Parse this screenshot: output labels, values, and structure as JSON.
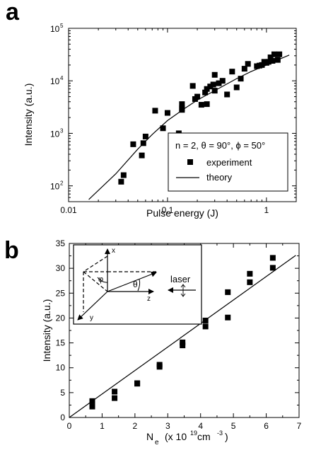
{
  "chart_data": [
    {
      "panel_label": "a",
      "type": "scatter",
      "xscale": "log",
      "yscale": "log",
      "xlim": [
        0.01,
        2
      ],
      "ylim": [
        50,
        100000
      ],
      "xlabel": "Pulse energy (J)",
      "ylabel": "Intensity (a.u.)",
      "x_ticks": [
        {
          "value": 0.01,
          "label": "0.01"
        },
        {
          "value": 0.1,
          "label": "0.1"
        },
        {
          "value": 1,
          "label": "1"
        }
      ],
      "y_ticks": [
        {
          "value": 100,
          "label": "10",
          "sup": "2"
        },
        {
          "value": 1000,
          "label": "10",
          "sup": "3"
        },
        {
          "value": 10000,
          "label": "10",
          "sup": "4"
        },
        {
          "value": 100000,
          "label": "10",
          "sup": "5"
        }
      ],
      "legend": {
        "placement": "lower-right",
        "title": "n = 2, θ = 90°, ϕ = 50°",
        "entries": [
          "experiment",
          "theory"
        ]
      },
      "series": [
        {
          "name": "experiment",
          "kind": "scatter",
          "marker": "square",
          "points": [
            [
              0.034,
              120
            ],
            [
              0.036,
              160
            ],
            [
              0.045,
              620
            ],
            [
              0.055,
              380
            ],
            [
              0.057,
              650
            ],
            [
              0.06,
              870
            ],
            [
              0.075,
              2700
            ],
            [
              0.09,
              1250
            ],
            [
              0.1,
              2450
            ],
            [
              0.13,
              1000
            ],
            [
              0.14,
              2800
            ],
            [
              0.14,
              3600
            ],
            [
              0.14,
              3000
            ],
            [
              0.18,
              8000
            ],
            [
              0.19,
              4500
            ],
            [
              0.2,
              5000
            ],
            [
              0.22,
              3500
            ],
            [
              0.24,
              6000
            ],
            [
              0.25,
              3600
            ],
            [
              0.25,
              7000
            ],
            [
              0.27,
              7800
            ],
            [
              0.29,
              8500
            ],
            [
              0.3,
              13000
            ],
            [
              0.3,
              6500
            ],
            [
              0.33,
              9000
            ],
            [
              0.36,
              10000
            ],
            [
              0.4,
              5500
            ],
            [
              0.45,
              15000
            ],
            [
              0.5,
              7500
            ],
            [
              0.55,
              11000
            ],
            [
              0.6,
              17000
            ],
            [
              0.65,
              21000
            ],
            [
              0.8,
              19000
            ],
            [
              0.85,
              19500
            ],
            [
              0.9,
              20000
            ],
            [
              0.95,
              23000
            ],
            [
              1.0,
              22000
            ],
            [
              1.05,
              23000
            ],
            [
              1.1,
              28000
            ],
            [
              1.15,
              24000
            ],
            [
              1.2,
              32000
            ],
            [
              1.3,
              25000
            ],
            [
              1.35,
              32000
            ]
          ]
        },
        {
          "name": "theory",
          "kind": "line",
          "points": [
            [
              0.016,
              55
            ],
            [
              0.03,
              170
            ],
            [
              0.05,
              500
            ],
            [
              0.07,
              950
            ],
            [
              0.1,
              1750
            ],
            [
              0.15,
              3000
            ],
            [
              0.2,
              4300
            ],
            [
              0.3,
              6500
            ],
            [
              0.5,
              11000
            ],
            [
              0.7,
              15000
            ],
            [
              1.0,
              20000
            ],
            [
              1.3,
              25000
            ],
            [
              1.7,
              31000
            ]
          ]
        }
      ]
    },
    {
      "panel_label": "b",
      "type": "scatter",
      "xlim": [
        0,
        7
      ],
      "ylim": [
        0,
        35
      ],
      "xlabel": "N",
      "xlabel_sub": "e",
      "xlabel_units": "(x 10",
      "xlabel_units_sup": "19",
      "xlabel_units_tail": " cm",
      "xlabel_units_sup2": "-3",
      "xlabel_units_close": ")",
      "ylabel": "Intensity (a.u.)",
      "x_ticks": [
        "0",
        "1",
        "2",
        "3",
        "4",
        "5",
        "6",
        "7"
      ],
      "y_ticks": [
        "0",
        "5",
        "10",
        "15",
        "20",
        "25",
        "30",
        "35"
      ],
      "series": [
        {
          "name": "experiment",
          "kind": "scatter",
          "marker": "square",
          "points": [
            [
              0.7,
              3.3
            ],
            [
              0.7,
              2.2
            ],
            [
              1.38,
              5.2
            ],
            [
              1.38,
              3.9
            ],
            [
              2.07,
              6.9
            ],
            [
              2.07,
              6.8
            ],
            [
              2.75,
              10.2
            ],
            [
              2.75,
              10.6
            ],
            [
              3.45,
              15.1
            ],
            [
              3.45,
              14.5
            ],
            [
              4.15,
              19.5
            ],
            [
              4.15,
              18.3
            ],
            [
              4.83,
              25.2
            ],
            [
              4.83,
              20.1
            ],
            [
              5.5,
              28.9
            ],
            [
              5.5,
              27.2
            ],
            [
              6.2,
              32.1
            ],
            [
              6.2,
              30.1
            ]
          ]
        },
        {
          "name": "theory",
          "kind": "line",
          "points": [
            [
              0,
              0
            ],
            [
              6.9,
              32.6
            ]
          ]
        }
      ],
      "inset": {
        "labels": {
          "x": "x",
          "y": "y",
          "z": "z",
          "phi": "φ",
          "theta": "θ",
          "laser": "laser"
        }
      }
    }
  ]
}
